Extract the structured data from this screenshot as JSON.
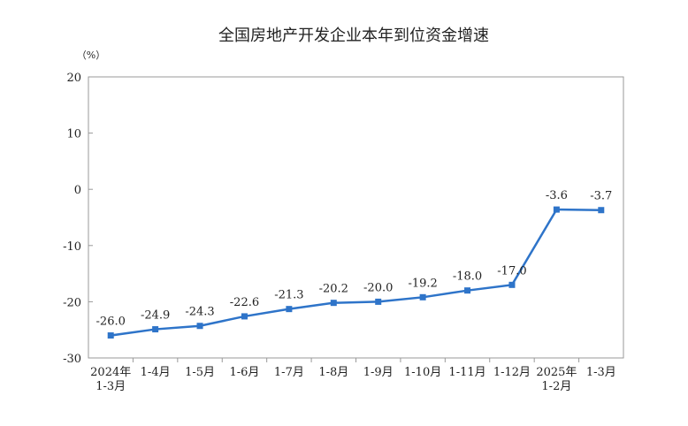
{
  "chart_data": {
    "type": "line",
    "title": "全国房地产开发企业本年到位资金增速",
    "y_unit": "（%）",
    "categories": [
      "2024年 1-3月",
      "1-4月",
      "1-5月",
      "1-6月",
      "1-7月",
      "1-8月",
      "1-9月",
      "1-10月",
      "1-11月",
      "1-12月",
      "2025年 1-2月",
      "1-3月"
    ],
    "series": [
      {
        "name": "本年到位资金增速",
        "color": "#2e74c9",
        "values": [
          -26.0,
          -24.9,
          -24.3,
          -22.6,
          -21.3,
          -20.2,
          -20.0,
          -19.2,
          -18.0,
          -17.0,
          -3.6,
          -3.7
        ],
        "value_labels": [
          "-26.0",
          "-24.9",
          "-24.3",
          "-22.6",
          "-21.3",
          "-20.2",
          "-20.0",
          "-19.2",
          "-18.0",
          "-17.0",
          "-3.6",
          "-3.7"
        ]
      }
    ],
    "ylim": [
      -30,
      20
    ],
    "yticks": [
      20,
      10,
      0,
      -10,
      -20,
      -30
    ]
  }
}
